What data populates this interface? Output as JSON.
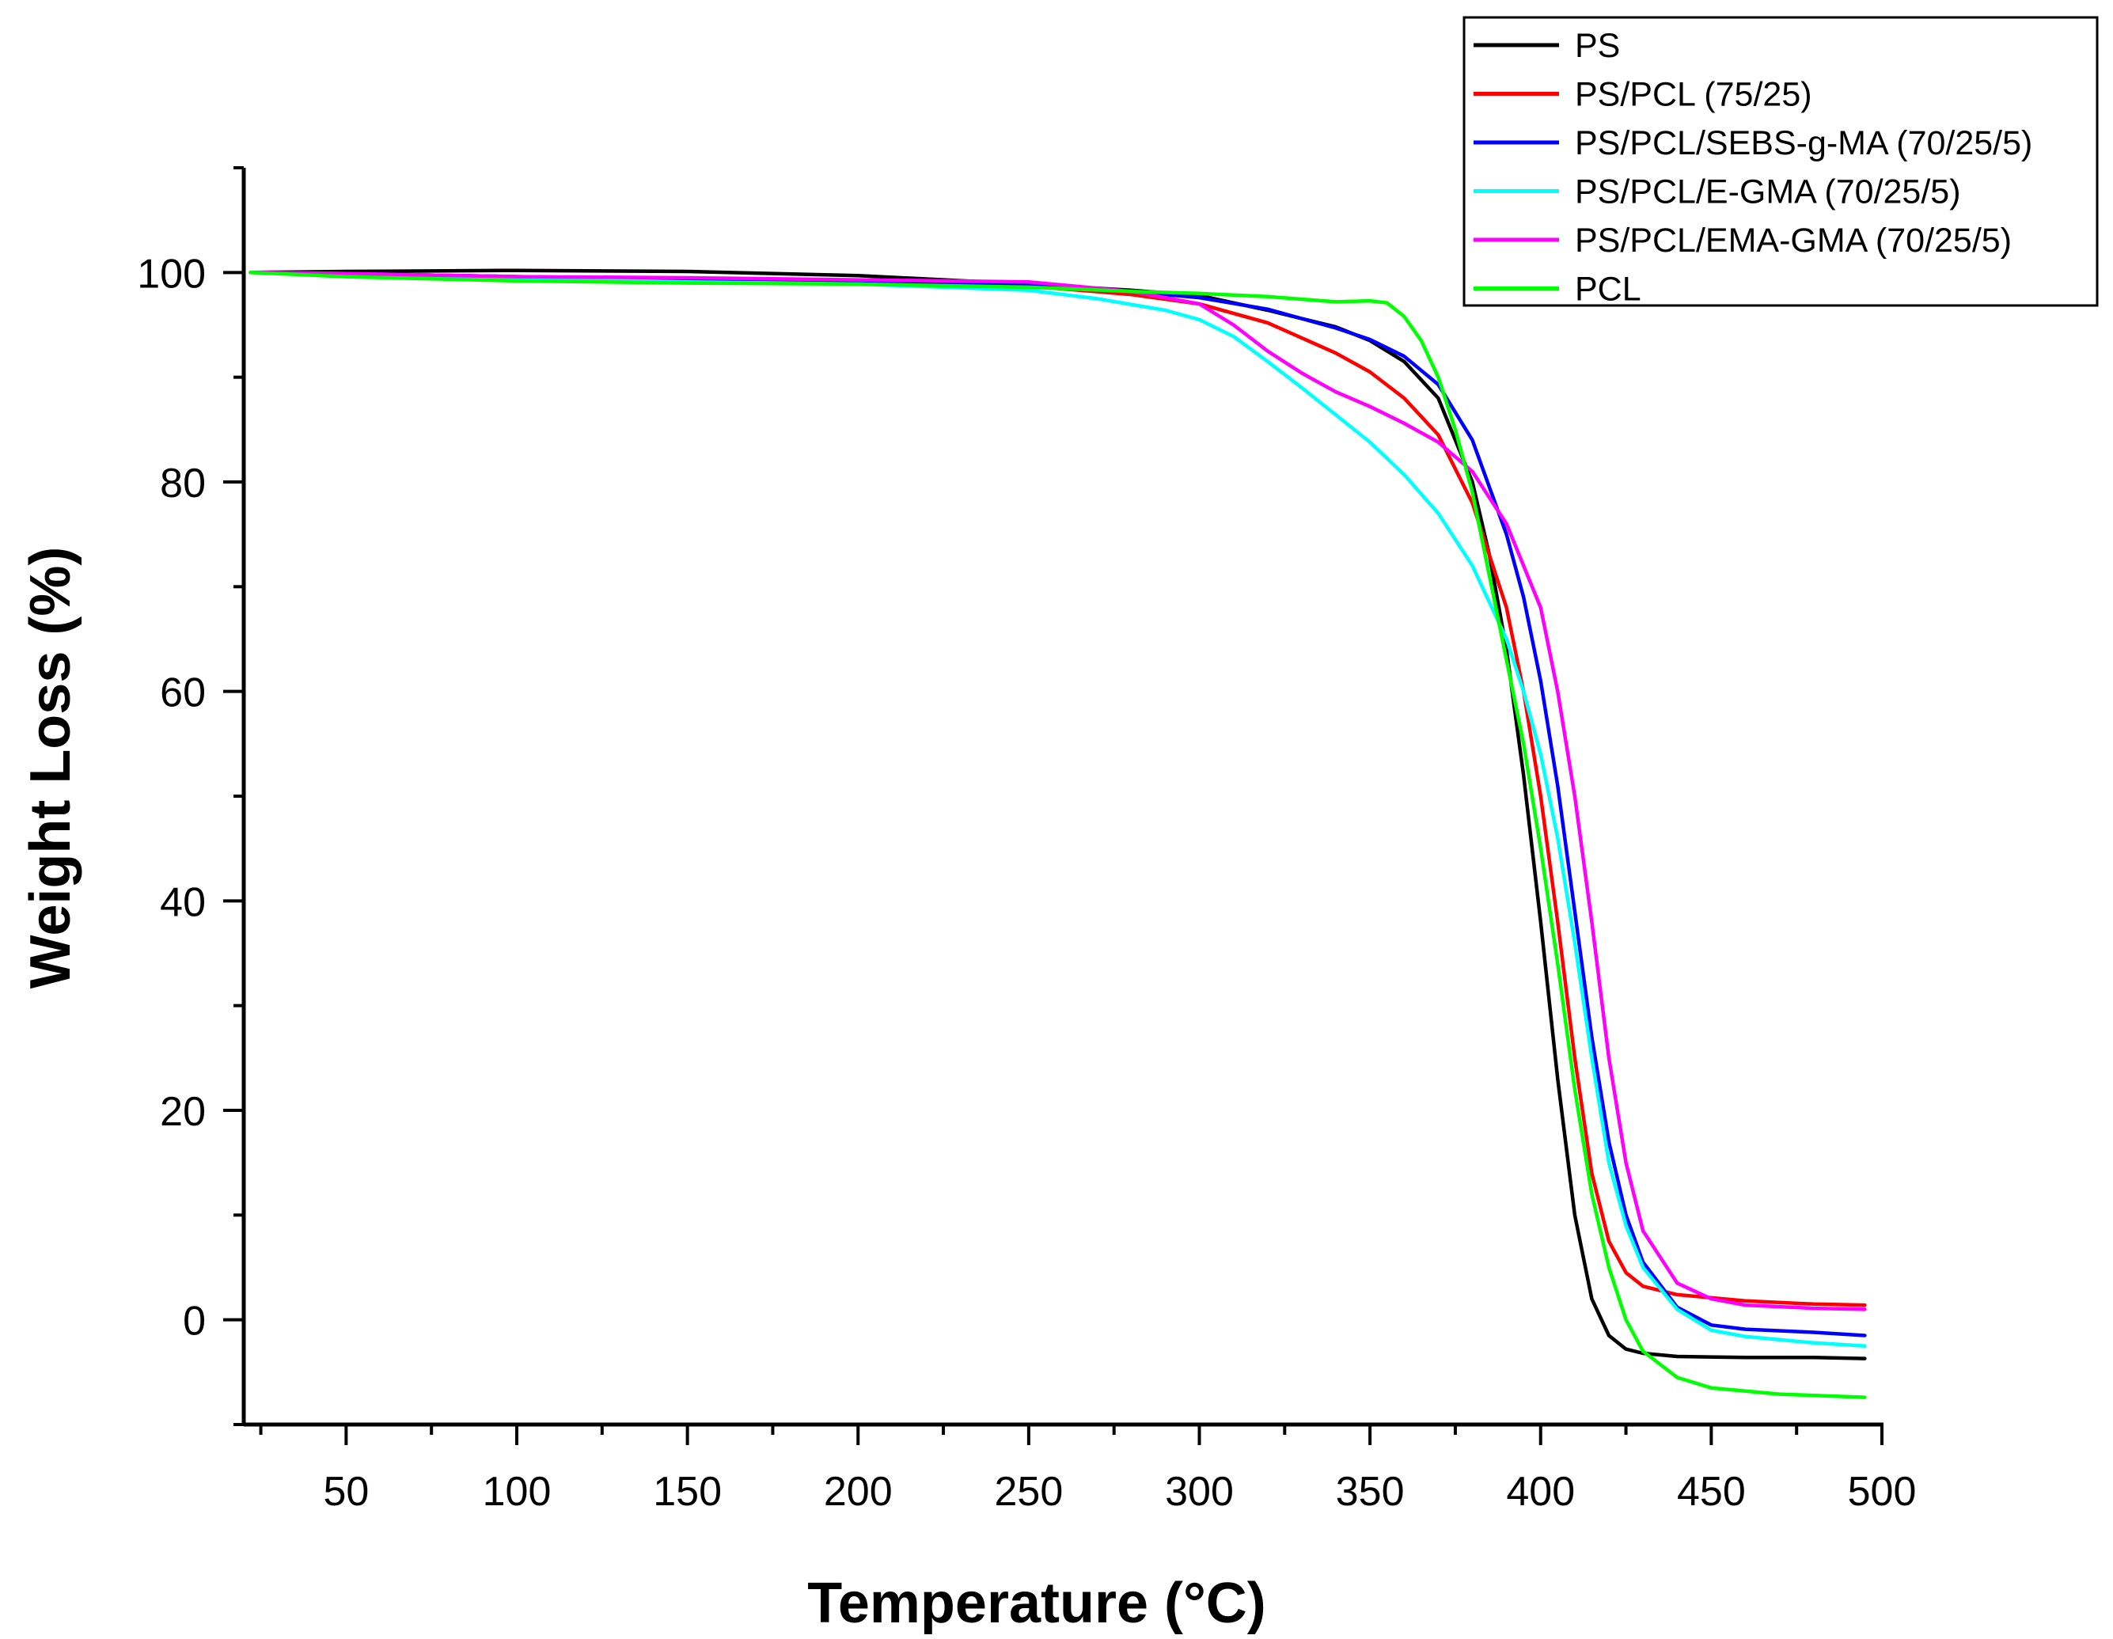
{
  "chart_data": {
    "type": "line",
    "title": "",
    "xlabel": "Temperature (°C)",
    "ylabel": "Weight Loss (%)",
    "xlim": [
      20,
      500
    ],
    "ylim": [
      -10,
      110
    ],
    "x_ticks": [
      50,
      100,
      150,
      200,
      250,
      300,
      350,
      400,
      450,
      500
    ],
    "y_ticks": [
      0,
      20,
      40,
      60,
      80,
      100
    ],
    "x_minor_step": 25,
    "y_minor_step": 10,
    "grid": false,
    "legend_position": "top-right",
    "series": [
      {
        "name": "PS",
        "color": "#000000",
        "points": [
          [
            22,
            100
          ],
          [
            50,
            100.1
          ],
          [
            100,
            100.2
          ],
          [
            150,
            100.1
          ],
          [
            200,
            99.7
          ],
          [
            250,
            98.9
          ],
          [
            280,
            98.3
          ],
          [
            300,
            97.8
          ],
          [
            320,
            96.4
          ],
          [
            340,
            94.8
          ],
          [
            350,
            93.5
          ],
          [
            360,
            91.5
          ],
          [
            370,
            88.0
          ],
          [
            380,
            80.0
          ],
          [
            385,
            73.0
          ],
          [
            390,
            64.0
          ],
          [
            395,
            52.0
          ],
          [
            400,
            38.0
          ],
          [
            405,
            23.0
          ],
          [
            410,
            10.0
          ],
          [
            415,
            2.0
          ],
          [
            420,
            -1.5
          ],
          [
            425,
            -2.8
          ],
          [
            430,
            -3.2
          ],
          [
            440,
            -3.5
          ],
          [
            460,
            -3.6
          ],
          [
            480,
            -3.6
          ],
          [
            495,
            -3.7
          ]
        ]
      },
      {
        "name": "PS/PCL (75/25)",
        "color": "#ff0000",
        "points": [
          [
            22,
            100
          ],
          [
            50,
            99.9
          ],
          [
            100,
            99.6
          ],
          [
            150,
            99.4
          ],
          [
            200,
            99.1
          ],
          [
            250,
            98.7
          ],
          [
            280,
            97.9
          ],
          [
            300,
            97.0
          ],
          [
            320,
            95.2
          ],
          [
            340,
            92.3
          ],
          [
            350,
            90.5
          ],
          [
            360,
            88.0
          ],
          [
            370,
            84.5
          ],
          [
            380,
            78.0
          ],
          [
            390,
            68.0
          ],
          [
            395,
            60.0
          ],
          [
            400,
            50.0
          ],
          [
            405,
            38.0
          ],
          [
            410,
            25.0
          ],
          [
            415,
            14.0
          ],
          [
            420,
            7.5
          ],
          [
            425,
            4.5
          ],
          [
            430,
            3.2
          ],
          [
            440,
            2.4
          ],
          [
            460,
            1.8
          ],
          [
            480,
            1.5
          ],
          [
            495,
            1.4
          ]
        ]
      },
      {
        "name": "PS/PCL/SEBS-g-MA (70/25/5)",
        "color": "#0000ff",
        "points": [
          [
            22,
            100
          ],
          [
            50,
            99.9
          ],
          [
            100,
            99.6
          ],
          [
            150,
            99.4
          ],
          [
            200,
            99.2
          ],
          [
            250,
            98.8
          ],
          [
            280,
            98.2
          ],
          [
            300,
            97.6
          ],
          [
            320,
            96.5
          ],
          [
            340,
            94.7
          ],
          [
            350,
            93.6
          ],
          [
            360,
            92.0
          ],
          [
            370,
            89.3
          ],
          [
            380,
            84.0
          ],
          [
            390,
            75.0
          ],
          [
            395,
            69.0
          ],
          [
            400,
            61.0
          ],
          [
            405,
            51.0
          ],
          [
            410,
            39.0
          ],
          [
            415,
            27.0
          ],
          [
            420,
            17.0
          ],
          [
            425,
            10.0
          ],
          [
            430,
            5.5
          ],
          [
            440,
            1.2
          ],
          [
            450,
            -0.5
          ],
          [
            460,
            -0.9
          ],
          [
            480,
            -1.2
          ],
          [
            495,
            -1.5
          ]
        ]
      },
      {
        "name": "PS/PCL/E-GMA (70/25/5)",
        "color": "#00ffff",
        "points": [
          [
            22,
            100
          ],
          [
            50,
            99.8
          ],
          [
            100,
            99.4
          ],
          [
            150,
            99.1
          ],
          [
            200,
            98.9
          ],
          [
            250,
            98.3
          ],
          [
            270,
            97.5
          ],
          [
            290,
            96.4
          ],
          [
            300,
            95.5
          ],
          [
            310,
            93.9
          ],
          [
            320,
            91.5
          ],
          [
            330,
            89.0
          ],
          [
            340,
            86.4
          ],
          [
            350,
            83.8
          ],
          [
            360,
            80.7
          ],
          [
            370,
            77.0
          ],
          [
            380,
            72.0
          ],
          [
            390,
            65.0
          ],
          [
            395,
            60.0
          ],
          [
            400,
            54.0
          ],
          [
            405,
            46.0
          ],
          [
            410,
            36.0
          ],
          [
            415,
            25.0
          ],
          [
            420,
            15.0
          ],
          [
            425,
            9.0
          ],
          [
            430,
            5.0
          ],
          [
            440,
            1.0
          ],
          [
            450,
            -1.0
          ],
          [
            460,
            -1.6
          ],
          [
            480,
            -2.2
          ],
          [
            495,
            -2.5
          ]
        ]
      },
      {
        "name": "PS/PCL/EMA-GMA (70/25/5)",
        "color": "#ff00ff",
        "points": [
          [
            22,
            100
          ],
          [
            50,
            99.9
          ],
          [
            100,
            99.6
          ],
          [
            150,
            99.5
          ],
          [
            200,
            99.3
          ],
          [
            250,
            99.1
          ],
          [
            280,
            98.2
          ],
          [
            300,
            97.0
          ],
          [
            310,
            95.0
          ],
          [
            320,
            92.5
          ],
          [
            330,
            90.4
          ],
          [
            340,
            88.6
          ],
          [
            350,
            87.2
          ],
          [
            360,
            85.6
          ],
          [
            370,
            83.8
          ],
          [
            380,
            81.0
          ],
          [
            390,
            76.0
          ],
          [
            400,
            68.0
          ],
          [
            405,
            60.0
          ],
          [
            410,
            50.0
          ],
          [
            415,
            38.0
          ],
          [
            420,
            25.0
          ],
          [
            425,
            15.0
          ],
          [
            430,
            8.5
          ],
          [
            440,
            3.5
          ],
          [
            450,
            2.0
          ],
          [
            460,
            1.4
          ],
          [
            480,
            1.1
          ],
          [
            495,
            1.0
          ]
        ]
      },
      {
        "name": "PCL",
        "color": "#00ff00",
        "points": [
          [
            22,
            100
          ],
          [
            50,
            99.6
          ],
          [
            100,
            99.2
          ],
          [
            150,
            99.0
          ],
          [
            200,
            98.9
          ],
          [
            250,
            98.6
          ],
          [
            280,
            98.2
          ],
          [
            300,
            98.0
          ],
          [
            320,
            97.7
          ],
          [
            340,
            97.2
          ],
          [
            350,
            97.3
          ],
          [
            355,
            97.1
          ],
          [
            360,
            95.8
          ],
          [
            365,
            93.5
          ],
          [
            370,
            90.0
          ],
          [
            375,
            85.0
          ],
          [
            380,
            79.0
          ],
          [
            385,
            71.0
          ],
          [
            390,
            63.0
          ],
          [
            395,
            55.0
          ],
          [
            400,
            45.0
          ],
          [
            405,
            34.0
          ],
          [
            410,
            22.0
          ],
          [
            415,
            12.0
          ],
          [
            420,
            5.0
          ],
          [
            425,
            0.0
          ],
          [
            430,
            -3.0
          ],
          [
            440,
            -5.5
          ],
          [
            450,
            -6.5
          ],
          [
            470,
            -7.1
          ],
          [
            495,
            -7.4
          ]
        ]
      }
    ]
  }
}
